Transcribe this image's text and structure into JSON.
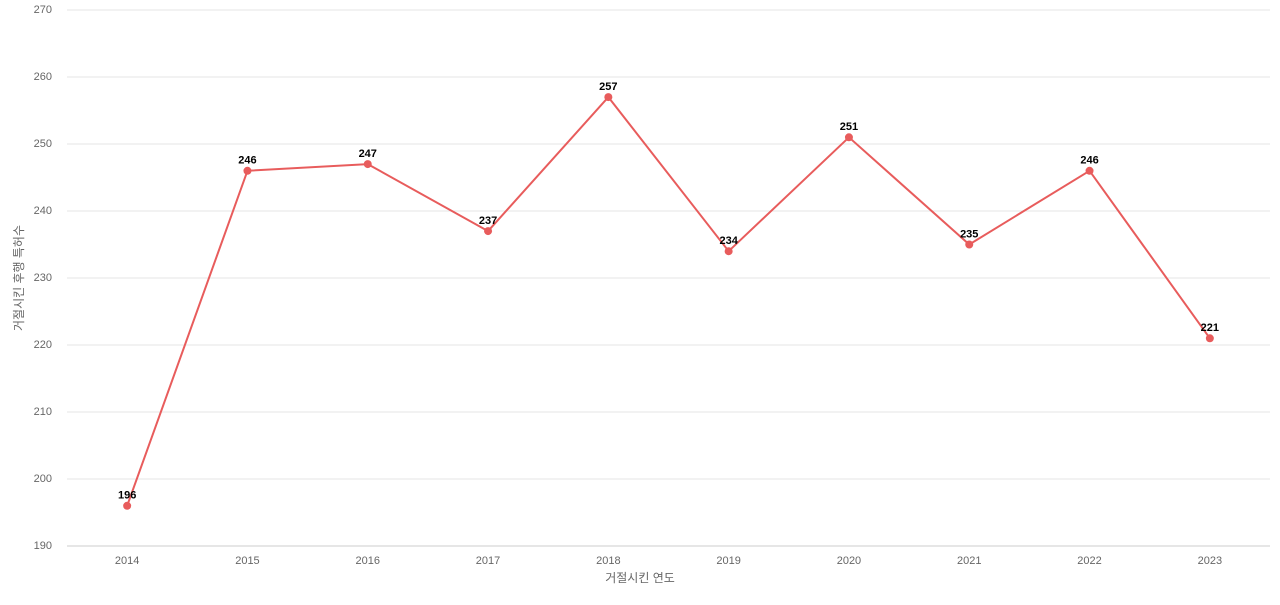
{
  "chart_data": {
    "type": "line",
    "x_label": "거절시킨 연도",
    "y_label": "거절시킨 후행 특허수",
    "categories": [
      "2014",
      "2015",
      "2016",
      "2017",
      "2018",
      "2019",
      "2020",
      "2021",
      "2022",
      "2023"
    ],
    "series": [
      {
        "name": "거절시킨 후행 특허수",
        "color": "#e85c5c",
        "values": [
          196,
          246,
          247,
          237,
          257,
          234,
          251,
          235,
          246,
          221
        ]
      }
    ],
    "ylim": [
      190,
      270
    ],
    "yticks": [
      190,
      200,
      210,
      220,
      230,
      240,
      250,
      260,
      270
    ],
    "grid": true
  }
}
